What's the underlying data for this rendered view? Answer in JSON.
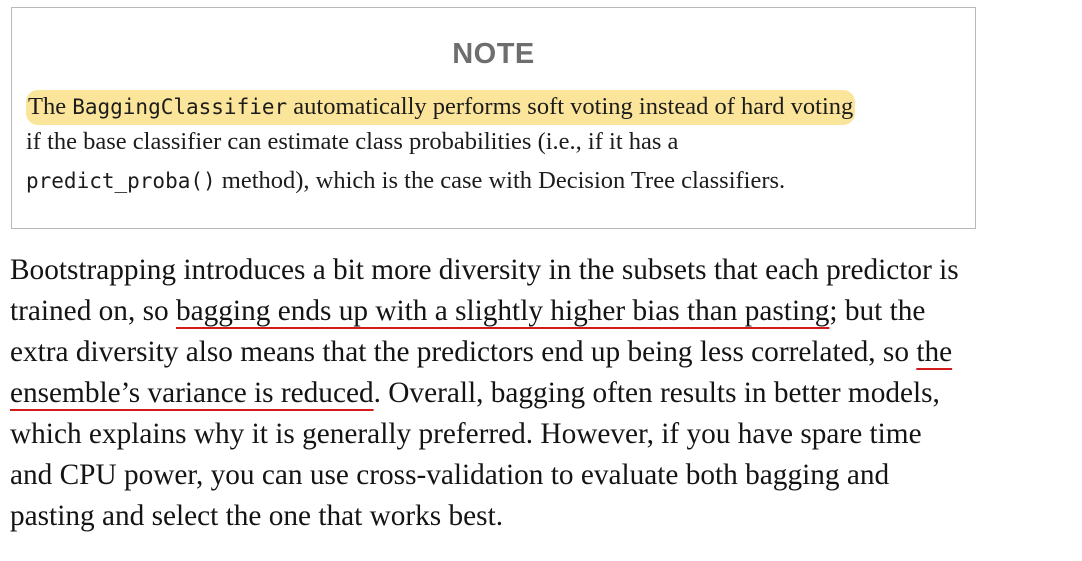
{
  "note": {
    "title": "NOTE",
    "line1": {
      "t1": "The ",
      "code": "BaggingClassifier",
      "t2": " automatically performs soft voting instead of hard voting"
    },
    "line2": "if the base classifier can estimate class probabilities (i.e., if it has a",
    "line3": {
      "code": "predict_proba()",
      "text": " method), which is the case with Decision Tree classifiers."
    },
    "highlight_color": "#fbe59a"
  },
  "paragraph": {
    "l1": "Bootstrapping introduces a bit more diversity in the subsets that each predictor is",
    "l2_a": "trained on, so ",
    "l2_u": "bagging ends up with a slightly higher bias than pasting",
    "l2_b": "; but the",
    "l3_a": "extra diversity also means that the predictors end up being less correlated, so ",
    "l3_u": "the",
    "l4_u": "ensemble’s variance is reduced",
    "l4_b": ". Overall, bagging often results in better models,",
    "l5": "which explains why it is generally preferred. However, if you have spare time",
    "l6": "and CPU power, you can use cross-validation to evaluate both bagging and",
    "l7": "pasting and select the one that works best.",
    "underline_color": "#d11b1b"
  }
}
